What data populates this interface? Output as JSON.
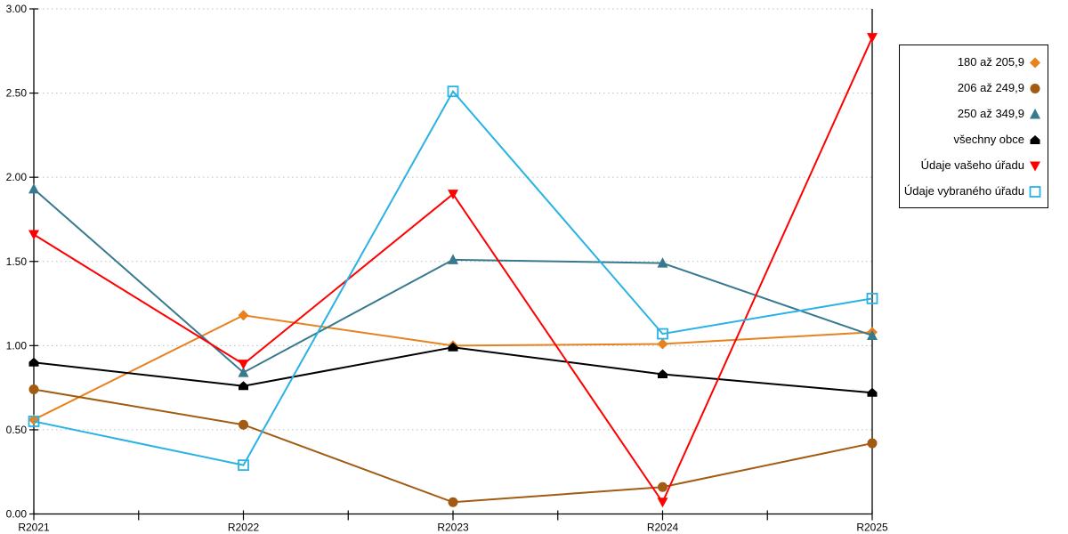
{
  "chart_data": {
    "type": "line",
    "title": "",
    "xlabel": "",
    "ylabel": "",
    "categories": [
      "R2021",
      "R2022",
      "R2023",
      "R2024",
      "R2025"
    ],
    "series": [
      {
        "name": "180 až 205,9",
        "marker": "diamond",
        "color": "#E8821E",
        "values": [
          0.56,
          1.18,
          1.0,
          1.01,
          1.08
        ]
      },
      {
        "name": "206 až 249,9",
        "marker": "circle",
        "color": "#A25B11",
        "values": [
          0.74,
          0.53,
          0.07,
          0.16,
          0.42
        ]
      },
      {
        "name": "250 až 349,9",
        "marker": "triangle-up",
        "color": "#37798E",
        "values": [
          1.93,
          0.84,
          1.51,
          1.49,
          1.06
        ]
      },
      {
        "name": "všechny obce",
        "marker": "pentagon",
        "color": "#000000",
        "values": [
          0.9,
          0.76,
          0.99,
          0.83,
          0.72
        ]
      },
      {
        "name": "Údaje vašeho úřadu",
        "marker": "triangle-down",
        "color": "#FF0000",
        "values": [
          1.66,
          0.89,
          1.9,
          0.07,
          2.83
        ]
      },
      {
        "name": "Údaje vybraného úřadu",
        "marker": "square-open",
        "color": "#29B2E5",
        "values": [
          0.55,
          0.29,
          2.51,
          1.07,
          1.28
        ]
      }
    ],
    "ylim": [
      0,
      3
    ],
    "y_tick_labels": [
      "0.00",
      "0.50",
      "1.00",
      "1.50",
      "2.00",
      "2.50",
      "3.00"
    ],
    "y_tick_values": [
      0,
      0.5,
      1.0,
      1.5,
      2.0,
      2.5,
      3.0
    ],
    "x_minor_ticks_between_categories": true,
    "grid": "horizontal-dotted",
    "legend_position": "right"
  },
  "colors": {
    "background": "#FFFFFF",
    "axis": "#000000",
    "grid": "#BFBFBF",
    "tick_text": "#000000"
  }
}
